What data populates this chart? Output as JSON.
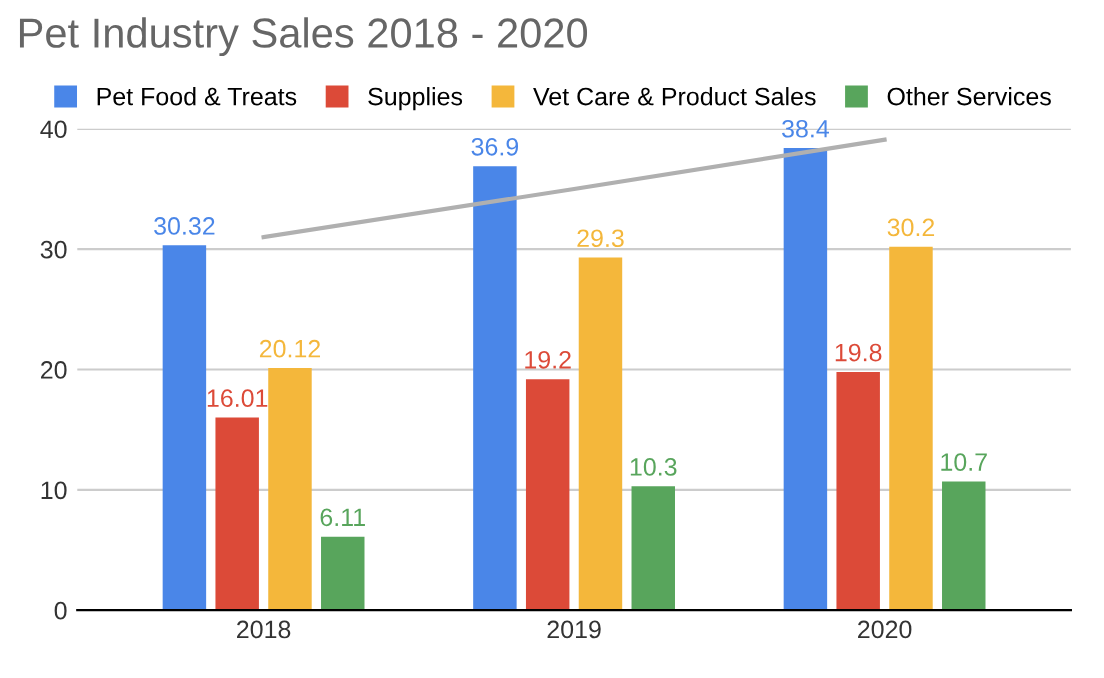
{
  "chart_data": {
    "type": "bar",
    "title": "Pet Industry Sales 2018 - 2020",
    "categories": [
      "2018",
      "2019",
      "2020"
    ],
    "series": [
      {
        "name": "Pet Food & Treats",
        "color": "#4a86e8",
        "values": [
          30.32,
          36.9,
          38.4
        ]
      },
      {
        "name": "Supplies",
        "color": "#dc4a38",
        "values": [
          16.01,
          19.2,
          19.8
        ]
      },
      {
        "name": "Vet Care & Product Sales",
        "color": "#f4b73b",
        "values": [
          20.12,
          29.3,
          30.2
        ]
      },
      {
        "name": "Other Services",
        "color": "#58a55c",
        "values": [
          6.11,
          10.3,
          10.7
        ]
      },
      {
        "type": "line",
        "color": "#b0b0b0",
        "values": [
          31.0,
          35.0,
          39.1
        ],
        "value_labels": [
          null,
          null,
          null
        ]
      }
    ],
    "ylim": [
      0,
      40
    ],
    "yticks": [
      0,
      10,
      20,
      30,
      40
    ],
    "grid": "y",
    "legend": "top left",
    "data_labels": true
  }
}
